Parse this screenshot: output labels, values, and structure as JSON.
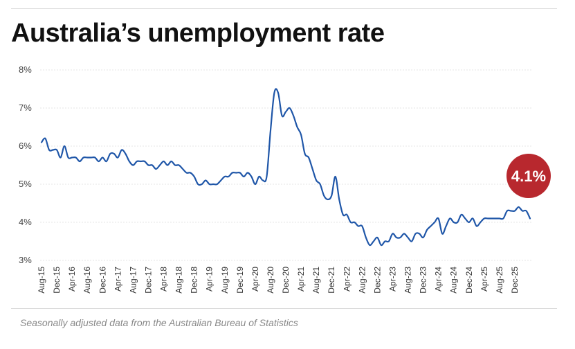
{
  "colors": {
    "line": "#1f56a8",
    "badge": "#b8282e"
  },
  "chart_data": {
    "type": "line",
    "title": "Australia’s unemployment rate",
    "caption": "Seasonally adjusted data from the Australian Bureau of Statistics",
    "ylabel": "",
    "xlabel": "",
    "ylim": [
      3,
      8
    ],
    "yticks": [
      3,
      4,
      5,
      6,
      7,
      8
    ],
    "ytick_labels": [
      "3%",
      "4%",
      "5%",
      "6%",
      "7%",
      "8%"
    ],
    "x_tick_labels": [
      "Aug-15",
      "Dec-15",
      "Apr-16",
      "Aug-16",
      "Dec-16",
      "Apr-17",
      "Aug-17",
      "Dec-17",
      "Apr-18",
      "Aug-18",
      "Dec-18",
      "Apr-19",
      "Aug-19",
      "Dec-19",
      "Apr-20",
      "Aug-20",
      "Dec-20",
      "Apr-21",
      "Aug-21",
      "Dec-21",
      "Apr-22",
      "Aug-22",
      "Dec-22",
      "Apr-23",
      "Aug-23",
      "Dec-23",
      "Apr-24",
      "Aug-24",
      "Dec-24",
      "Apr-25",
      "Aug-25",
      "Dec-25"
    ],
    "latest_label": "4.1%",
    "series": [
      {
        "name": "Unemployment rate",
        "start": "Aug-15",
        "frequency": "monthly",
        "values": [
          6.1,
          6.2,
          5.9,
          5.9,
          5.9,
          5.7,
          6.0,
          5.7,
          5.7,
          5.7,
          5.6,
          5.7,
          5.7,
          5.7,
          5.7,
          5.6,
          5.7,
          5.6,
          5.8,
          5.8,
          5.7,
          5.9,
          5.8,
          5.6,
          5.5,
          5.6,
          5.6,
          5.6,
          5.5,
          5.5,
          5.4,
          5.5,
          5.6,
          5.5,
          5.6,
          5.5,
          5.5,
          5.4,
          5.3,
          5.3,
          5.2,
          5.0,
          5.0,
          5.1,
          5.0,
          5.0,
          5.0,
          5.1,
          5.2,
          5.2,
          5.3,
          5.3,
          5.3,
          5.2,
          5.3,
          5.2,
          5.0,
          5.2,
          5.1,
          5.2,
          6.4,
          7.4,
          7.4,
          6.8,
          6.9,
          7.0,
          6.8,
          6.5,
          6.3,
          5.8,
          5.7,
          5.4,
          5.1,
          5.0,
          4.7,
          4.6,
          4.7,
          5.2,
          4.6,
          4.2,
          4.2,
          4.0,
          4.0,
          3.9,
          3.9,
          3.6,
          3.4,
          3.5,
          3.6,
          3.4,
          3.5,
          3.5,
          3.7,
          3.6,
          3.6,
          3.7,
          3.6,
          3.5,
          3.7,
          3.7,
          3.6,
          3.8,
          3.9,
          4.0,
          4.1,
          3.7,
          3.9,
          4.1,
          4.0,
          4.0,
          4.2,
          4.1,
          4.0,
          4.1,
          3.9,
          4.0,
          4.1,
          4.1,
          4.1,
          4.1,
          4.1,
          4.1,
          4.3,
          4.3,
          4.3,
          4.4,
          4.3,
          4.3,
          4.1
        ]
      }
    ]
  }
}
